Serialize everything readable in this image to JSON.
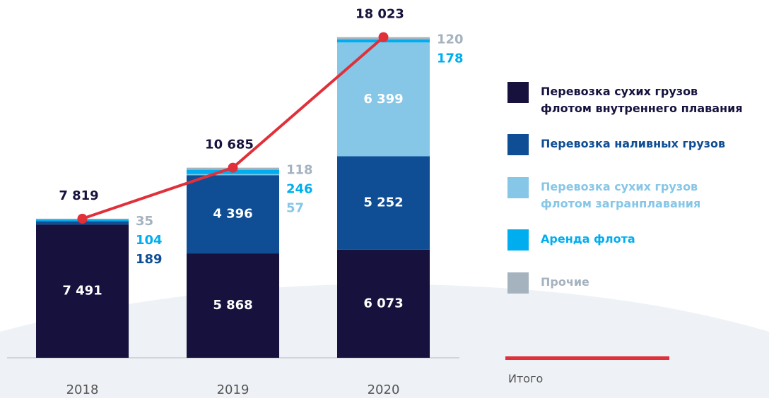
{
  "chart_data": {
    "type": "bar",
    "categories": [
      "2018",
      "2019",
      "2020"
    ],
    "series": [
      {
        "name": "Перевозка сухих грузов\nфлотом внутреннего плавания",
        "color": "#16123d",
        "values": [
          7491,
          5868,
          6073
        ],
        "value_labels": [
          "7 491",
          "5 868",
          "6 073"
        ]
      },
      {
        "name": "Перевозка наливных грузов",
        "color": "#0f4d94",
        "values": [
          189,
          4396,
          5252
        ],
        "value_labels": [
          "189",
          "4 396",
          "5 252"
        ]
      },
      {
        "name": "Перевозка сухих грузов\nфлотом загранплавания",
        "color": "#86c6e7",
        "values": [
          null,
          57,
          6399
        ],
        "value_labels": [
          null,
          "57",
          "6 399"
        ]
      },
      {
        "name": "Аренда флота",
        "color": "#00aeef",
        "values": [
          104,
          246,
          178
        ],
        "value_labels": [
          "104",
          "246",
          "178"
        ]
      },
      {
        "name": "Прочие",
        "color": "#a5b3bf",
        "values": [
          35,
          118,
          120
        ],
        "value_labels": [
          "35",
          "118",
          "120"
        ]
      },
      {
        "name": "Итого",
        "type": "line",
        "color": "#e0303a",
        "values": [
          7819,
          10685,
          18023
        ],
        "value_labels": [
          "7 819",
          "10 685",
          "18 023"
        ]
      }
    ],
    "ylim": [
      0,
      19000
    ]
  }
}
